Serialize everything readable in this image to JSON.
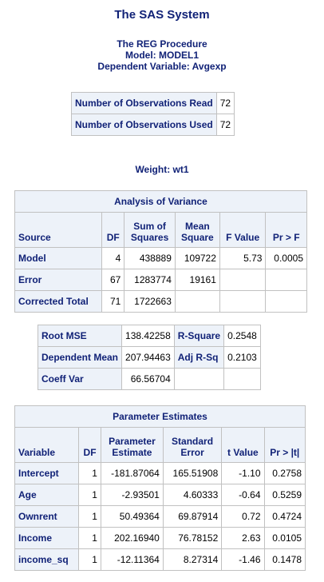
{
  "header": {
    "title": "The SAS System",
    "procedure": "The REG Procedure",
    "model": "Model: MODEL1",
    "dependent": "Dependent Variable: Avgexp",
    "weight": "Weight: wt1"
  },
  "observations": {
    "rows": [
      {
        "label": "Number of Observations Read",
        "value": "72"
      },
      {
        "label": "Number of Observations Used",
        "value": "72"
      }
    ]
  },
  "anova": {
    "caption": "Analysis of Variance",
    "headers": {
      "source": "Source",
      "df": "DF",
      "ss_line1": "Sum of",
      "ss_line2": "Squares",
      "ms_line1": "Mean",
      "ms_line2": "Square",
      "fvalue": "F Value",
      "prf": "Pr > F"
    },
    "rows": [
      {
        "source": "Model",
        "df": "4",
        "ss": "438889",
        "ms": "109722",
        "f": "5.73",
        "p": "0.0005"
      },
      {
        "source": "Error",
        "df": "67",
        "ss": "1283774",
        "ms": "19161",
        "f": "",
        "p": ""
      },
      {
        "source": "Corrected Total",
        "df": "71",
        "ss": "1722663",
        "ms": "",
        "f": "",
        "p": ""
      }
    ]
  },
  "fit": {
    "rows": [
      {
        "label1": "Root MSE",
        "value1": "138.42258",
        "label2": "R-Square",
        "value2": "0.2548"
      },
      {
        "label1": "Dependent Mean",
        "value1": "207.94463",
        "label2": "Adj R-Sq",
        "value2": "0.2103"
      },
      {
        "label1": "Coeff Var",
        "value1": "66.56704",
        "label2": "",
        "value2": ""
      }
    ]
  },
  "parameters": {
    "caption": "Parameter Estimates",
    "headers": {
      "variable": "Variable",
      "df": "DF",
      "est_line1": "Parameter",
      "est_line2": "Estimate",
      "se_line1": "Standard",
      "se_line2": "Error",
      "t": "t Value",
      "p": "Pr > |t|"
    },
    "rows": [
      {
        "variable": "Intercept",
        "df": "1",
        "estimate": "-181.87064",
        "se": "165.51908",
        "t": "-1.10",
        "p": "0.2758"
      },
      {
        "variable": "Age",
        "df": "1",
        "estimate": "-2.93501",
        "se": "4.60333",
        "t": "-0.64",
        "p": "0.5259"
      },
      {
        "variable": "Ownrent",
        "df": "1",
        "estimate": "50.49364",
        "se": "69.87914",
        "t": "0.72",
        "p": "0.4724"
      },
      {
        "variable": "Income",
        "df": "1",
        "estimate": "202.16940",
        "se": "76.78152",
        "t": "2.63",
        "p": "0.0105"
      },
      {
        "variable": "income_sq",
        "df": "1",
        "estimate": "-12.11364",
        "se": "8.27314",
        "t": "-1.46",
        "p": "0.1478"
      }
    ]
  },
  "colors": {
    "title_text": "#112277",
    "header_background": "#edf2f9",
    "border": "#c1c1c1"
  }
}
